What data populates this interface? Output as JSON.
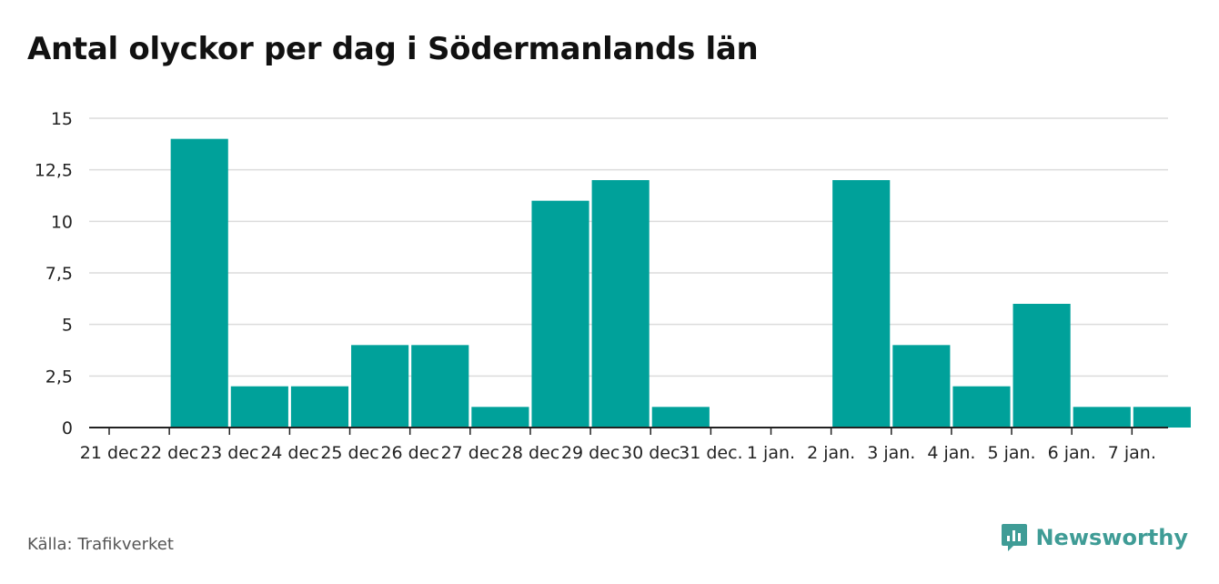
{
  "title": "Antal olyckor per dag i Södermanlands län",
  "source": "Källa: Trafikverket",
  "brand": {
    "name": "Newsworthy",
    "color": "#3f9c96"
  },
  "colors": {
    "bar": "#00a19a",
    "grid": "#dcdcdc",
    "axis": "#222222"
  },
  "chart_data": {
    "type": "bar",
    "title": "Antal olyckor per dag i Södermanlands län",
    "xlabel": "",
    "ylabel": "",
    "categories": [
      "21 dec",
      "22 dec",
      "23 dec",
      "24 dec",
      "25 dec",
      "26 dec",
      "27 dec",
      "28 dec",
      "29 dec",
      "30 dec",
      "31 dec.",
      "1 jan.",
      "2 jan.",
      "3 jan.",
      "4 jan.",
      "5 jan.",
      "6 jan.",
      "7 jan."
    ],
    "values": [
      0,
      14,
      2,
      2,
      4,
      4,
      1,
      11,
      12,
      1,
      0,
      0,
      12,
      4,
      2,
      6,
      1,
      1
    ],
    "ylim": [
      0,
      15
    ],
    "yticks": [
      0,
      2.5,
      5,
      7.5,
      10,
      12.5,
      15
    ],
    "ytick_labels": [
      "0",
      "2,5",
      "5",
      "7,5",
      "10",
      "12,5",
      "15"
    ],
    "grid": true,
    "legend": "none"
  }
}
